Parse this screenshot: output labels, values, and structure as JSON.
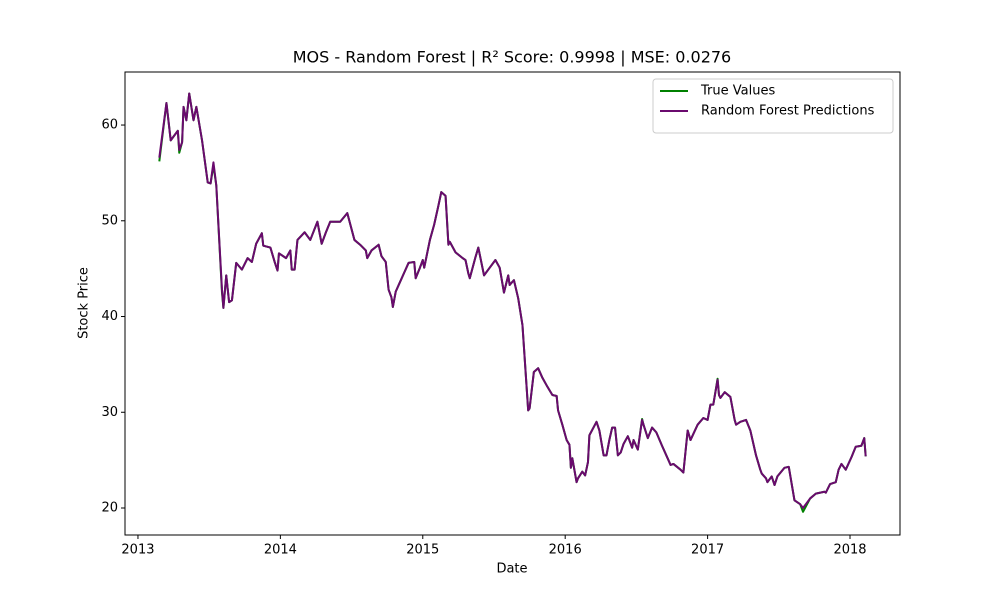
{
  "chart_data": {
    "type": "line",
    "title": "MOS - Random Forest | R² Score: 0.9998 | MSE: 0.0276",
    "x_label": "Date",
    "y_label": "Stock Price",
    "xlim": [
      2012.909,
      2018.351
    ],
    "ylim": [
      17.18,
      65.54
    ],
    "xticks": [
      2013,
      2014,
      2015,
      2016,
      2017,
      2018
    ],
    "yticks": [
      20,
      30,
      40,
      50,
      60
    ],
    "legend": "upper right",
    "x": [
      2013.15,
      2013.2,
      2013.23,
      2013.28,
      2013.29,
      2013.31,
      2013.32,
      2013.34,
      2013.36,
      2013.39,
      2013.41,
      2013.45,
      2013.49,
      2013.51,
      2013.53,
      2013.55,
      2013.59,
      2013.6,
      2013.62,
      2013.64,
      2013.66,
      2013.69,
      2013.73,
      2013.77,
      2013.8,
      2013.83,
      2013.87,
      2013.88,
      2013.93,
      2013.96,
      2013.98,
      2013.99,
      2014.04,
      2014.07,
      2014.08,
      2014.1,
      2014.12,
      2014.17,
      2014.21,
      2014.26,
      2014.29,
      2014.32,
      2014.35,
      2014.42,
      2014.47,
      2014.52,
      2014.56,
      2014.6,
      2014.61,
      2014.64,
      2014.69,
      2014.71,
      2014.74,
      2014.76,
      2014.78,
      2014.79,
      2014.81,
      2014.84,
      2014.87,
      2014.9,
      2014.94,
      2014.95,
      2014.98,
      2015.0,
      2015.01,
      2015.05,
      2015.08,
      2015.11,
      2015.13,
      2015.16,
      2015.18,
      2015.19,
      2015.23,
      2015.28,
      2015.3,
      2015.32,
      2015.33,
      2015.37,
      2015.39,
      2015.43,
      2015.47,
      2015.51,
      2015.54,
      2015.57,
      2015.6,
      2015.61,
      2015.64,
      2015.67,
      2015.7,
      2015.74,
      2015.75,
      2015.78,
      2015.81,
      2015.84,
      2015.87,
      2015.91,
      2015.94,
      2015.95,
      2015.98,
      2016.01,
      2016.03,
      2016.04,
      2016.05,
      2016.08,
      2016.09,
      2016.12,
      2016.14,
      2016.16,
      2016.17,
      2016.22,
      2016.24,
      2016.27,
      2016.29,
      2016.31,
      2016.33,
      2016.35,
      2016.37,
      2016.39,
      2016.41,
      2016.44,
      2016.47,
      2016.48,
      2016.51,
      2016.54,
      2016.55,
      2016.58,
      2016.61,
      2016.64,
      2016.68,
      2016.71,
      2016.74,
      2016.76,
      2016.81,
      2016.83,
      2016.86,
      2016.88,
      2016.93,
      2016.97,
      2017.0,
      2017.02,
      2017.04,
      2017.07,
      2017.08,
      2017.09,
      2017.12,
      2017.16,
      2017.19,
      2017.2,
      2017.23,
      2017.27,
      2017.3,
      2017.34,
      2017.37,
      2017.38,
      2017.41,
      2017.42,
      2017.45,
      2017.47,
      2017.49,
      2017.54,
      2017.57,
      2017.61,
      2017.65,
      2017.67,
      2017.72,
      2017.76,
      2017.82,
      2017.83,
      2017.86,
      2017.9,
      2017.92,
      2017.94,
      2017.97,
      2018.01,
      2018.04,
      2018.08,
      2018.1,
      2018.11
    ],
    "series": [
      {
        "name": "True Values",
        "color": "#008000",
        "values": [
          56.2,
          62.3,
          58.4,
          59.4,
          57.1,
          58.2,
          61.9,
          60.5,
          63.3,
          60.5,
          61.9,
          58.4,
          54.0,
          53.9,
          55.8,
          53.7,
          42.5,
          40.9,
          44.3,
          41.5,
          41.7,
          45.6,
          44.9,
          46.1,
          45.7,
          47.6,
          48.7,
          47.4,
          47.2,
          45.7,
          44.8,
          46.6,
          46.1,
          46.9,
          44.9,
          44.9,
          48,
          48.8,
          48,
          49.9,
          47.6,
          48.8,
          49.9,
          49.9,
          50.8,
          48,
          47.5,
          46.9,
          46.1,
          46.9,
          47.5,
          46.3,
          45.7,
          42.8,
          42,
          41,
          42.6,
          43.6,
          44.6,
          45.6,
          45.7,
          44,
          45.1,
          45.9,
          45.1,
          48,
          49.6,
          51.6,
          53,
          52.6,
          47.5,
          47.8,
          46.7,
          46.1,
          45.9,
          44.5,
          44,
          46.2,
          47.2,
          44.3,
          45.1,
          45.9,
          45.1,
          42.5,
          44.3,
          43.3,
          43.8,
          41.9,
          39.1,
          30.2,
          30.4,
          34.2,
          34.6,
          33.6,
          32.8,
          31.8,
          31.7,
          30.2,
          28.7,
          27.1,
          26.6,
          24.2,
          25.2,
          22.7,
          23.1,
          23.8,
          23.4,
          24.8,
          27.6,
          29,
          28.1,
          25.5,
          25.5,
          27.1,
          28.4,
          28.4,
          25.5,
          25.8,
          26.7,
          27.5,
          26.3,
          27.1,
          26.1,
          29.3,
          28.7,
          27.3,
          28.4,
          27.9,
          26.5,
          25.5,
          24.5,
          24.6,
          24,
          23.7,
          28.1,
          27.1,
          28.7,
          29.4,
          29.2,
          30.8,
          30.8,
          33.5,
          31.8,
          31.5,
          32.1,
          31.6,
          29.2,
          28.7,
          29,
          29.2,
          28.1,
          25.5,
          24,
          23.6,
          23.1,
          22.7,
          23.3,
          22.4,
          23.3,
          24.2,
          24.3,
          20.8,
          20.4,
          19.6,
          21,
          21.5,
          21.7,
          21.6,
          22.5,
          22.7,
          24,
          24.6,
          24,
          25.3,
          26.4,
          26.5,
          27.3,
          25.4
        ]
      },
      {
        "name": "Random Forest Predictions",
        "color": "#6a0a6e",
        "values": [
          56.6,
          62.3,
          58.4,
          59.4,
          57.4,
          58.2,
          61.9,
          60.5,
          63.3,
          60.5,
          61.9,
          58.4,
          54.0,
          53.9,
          56.1,
          53.7,
          42.8,
          40.9,
          44.3,
          41.5,
          41.7,
          45.6,
          44.9,
          46.1,
          45.7,
          47.6,
          48.7,
          47.4,
          47.2,
          45.7,
          44.8,
          46.6,
          46.1,
          46.9,
          44.9,
          44.9,
          48,
          48.8,
          48,
          49.9,
          47.6,
          48.8,
          49.9,
          49.9,
          50.8,
          48,
          47.5,
          46.9,
          46.1,
          46.9,
          47.5,
          46.3,
          45.7,
          42.8,
          42,
          41,
          42.6,
          43.6,
          44.6,
          45.6,
          45.7,
          44,
          45.1,
          45.9,
          45.1,
          48,
          49.6,
          51.6,
          53,
          52.6,
          47.5,
          47.8,
          46.7,
          46.1,
          45.9,
          44.5,
          44,
          46.2,
          47.2,
          44.3,
          45.1,
          45.9,
          45.1,
          42.5,
          44.3,
          43.3,
          43.8,
          41.9,
          39.1,
          30.2,
          30.4,
          34.2,
          34.6,
          33.6,
          32.8,
          31.8,
          31.7,
          30.2,
          28.7,
          27.1,
          26.6,
          24.2,
          25.2,
          22.7,
          23.1,
          23.8,
          23.4,
          24.8,
          27.6,
          29,
          28.1,
          25.5,
          25.5,
          27.1,
          28.4,
          28.4,
          25.5,
          25.8,
          26.7,
          27.5,
          26.3,
          27.1,
          26.1,
          29.2,
          28.7,
          27.3,
          28.4,
          27.9,
          26.5,
          25.5,
          24.5,
          24.6,
          24,
          23.7,
          28.1,
          27.1,
          28.7,
          29.4,
          29.2,
          30.8,
          30.8,
          33.4,
          31.8,
          31.5,
          32.1,
          31.6,
          29.2,
          28.7,
          29,
          29.2,
          28.1,
          25.5,
          24,
          23.6,
          23.1,
          22.7,
          23.3,
          22.4,
          23.3,
          24.2,
          24.3,
          20.8,
          20.4,
          20,
          21,
          21.5,
          21.7,
          21.6,
          22.5,
          22.7,
          24,
          24.6,
          24,
          25.3,
          26.4,
          26.5,
          27.3,
          25.4
        ]
      }
    ]
  }
}
